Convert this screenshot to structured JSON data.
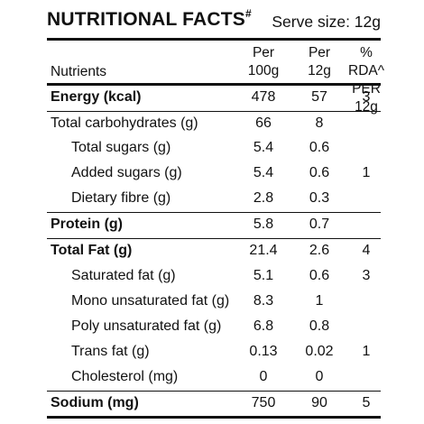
{
  "title": "NUTRITIONAL FACTS",
  "title_mark": "#",
  "serve_size": "Serve size: 12g",
  "headers": {
    "nutrients": "Nutrients",
    "per100_line1": "Per",
    "per100_line2": "100g",
    "per12_line1": "Per",
    "per12_line2": "12g",
    "rda_line1": "% RDA^",
    "rda_line2": "PER 12g"
  },
  "rows": [
    {
      "label": "Energy (kcal)",
      "per100": "478",
      "per12": "57",
      "rda": "3"
    },
    {
      "label": "Total carbohydrates (g)",
      "per100": "66",
      "per12": "8",
      "rda": ""
    },
    {
      "label": "Total sugars (g)",
      "per100": "5.4",
      "per12": "0.6",
      "rda": ""
    },
    {
      "label": "Added sugars (g)",
      "per100": "5.4",
      "per12": "0.6",
      "rda": "1"
    },
    {
      "label": "Dietary fibre (g)",
      "per100": "2.8",
      "per12": "0.3",
      "rda": ""
    },
    {
      "label": "Protein (g)",
      "per100": "5.8",
      "per12": "0.7",
      "rda": ""
    },
    {
      "label": "Total Fat (g)",
      "per100": "21.4",
      "per12": "2.6",
      "rda": "4"
    },
    {
      "label": "Saturated fat (g)",
      "per100": "5.1",
      "per12": "0.6",
      "rda": "3"
    },
    {
      "label": "Mono unsaturated fat (g)",
      "per100": "8.3",
      "per12": "1",
      "rda": ""
    },
    {
      "label": "Poly unsaturated fat (g)",
      "per100": "6.8",
      "per12": "0.8",
      "rda": ""
    },
    {
      "label": "Trans fat (g)",
      "per100": "0.13",
      "per12": "0.02",
      "rda": "1"
    },
    {
      "label": "Cholesterol (mg)",
      "per100": "0",
      "per12": "0",
      "rda": ""
    },
    {
      "label": "Sodium (mg)",
      "per100": "750",
      "per12": "90",
      "rda": "5"
    }
  ]
}
